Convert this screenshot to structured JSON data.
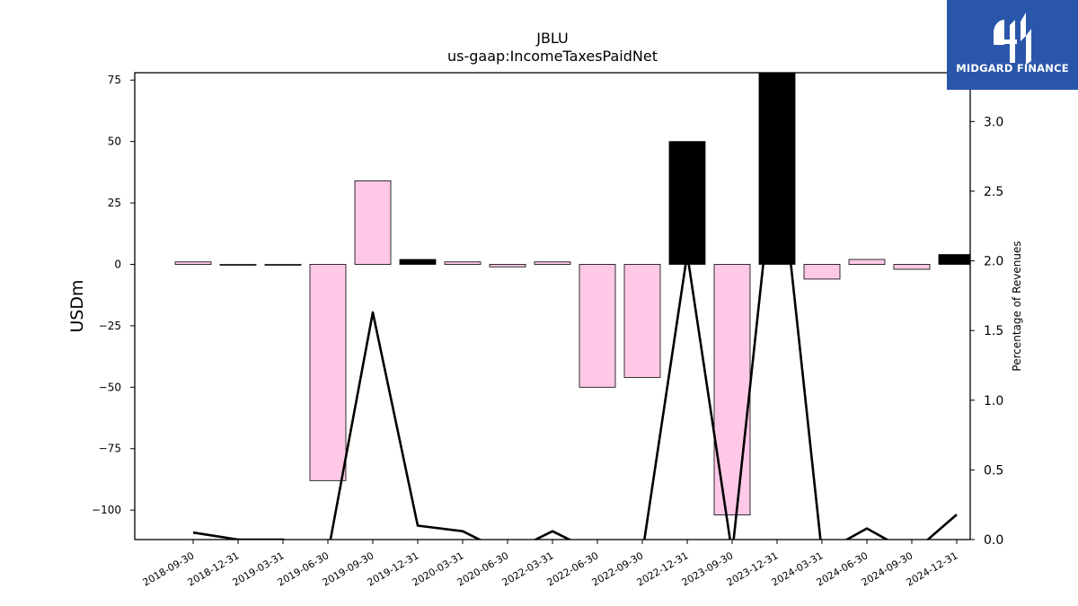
{
  "chart_data": {
    "type": "bar",
    "title": "JBLU",
    "subtitle": "us-gaap:IncomeTaxesPaidNet",
    "ylabel": "USDm",
    "y2label": "Percentage of Revenues",
    "ylim": [
      -112,
      78
    ],
    "y2lim": [
      0,
      3.35
    ],
    "yticks": [
      75,
      50,
      25,
      0,
      -25,
      -50,
      -75,
      -100
    ],
    "y2ticks": [
      0.0,
      0.5,
      1.0,
      1.5,
      2.0,
      2.5,
      3.0
    ],
    "y2tick_labels": [
      "0.0",
      "0.5",
      "1.0",
      "1.5",
      "2.0",
      "2.5",
      "3.0"
    ],
    "categories": [
      "2018-09-30",
      "2018-12-31",
      "2019-03-31",
      "2019-06-30",
      "2019-09-30",
      "2019-12-31",
      "2020-03-31",
      "2020-06-30",
      "2022-03-31",
      "2022-06-30",
      "2022-09-30",
      "2022-12-31",
      "2023-09-30",
      "2023-12-31",
      "2024-03-31",
      "2024-06-30",
      "2024-09-30",
      "2024-12-31"
    ],
    "series": [
      {
        "kind": "bar",
        "values": [
          1,
          -0.3,
          -0.3,
          -88,
          34,
          2,
          1,
          -1,
          1,
          -50,
          -46,
          50,
          -102,
          78,
          -6,
          2,
          -2,
          4
        ],
        "colors": [
          "#ffc8e6",
          "#ffc8e6",
          "#ffc8e6",
          "#ffc8e6",
          "#ffc8e6",
          "#000000",
          "#ffc8e6",
          "#ffc8e6",
          "#ffc8e6",
          "#ffc8e6",
          "#ffc8e6",
          "#000000",
          "#ffc8e6",
          "#000000",
          "#ffc8e6",
          "#ffc8e6",
          "#ffc8e6",
          "#000000"
        ]
      },
      {
        "kind": "line",
        "axis": "right",
        "values": [
          0.05,
          0.0,
          0.0,
          -0.1,
          1.63,
          0.1,
          0.06,
          -0.1,
          0.06,
          -0.1,
          -0.1,
          2.05,
          -0.1,
          2.9,
          -0.1,
          0.08,
          -0.1,
          0.18
        ]
      }
    ],
    "grid": false,
    "legend": "none"
  },
  "brand": {
    "name": "MIDGARD FINANCE",
    "color": "#2a56aa"
  }
}
